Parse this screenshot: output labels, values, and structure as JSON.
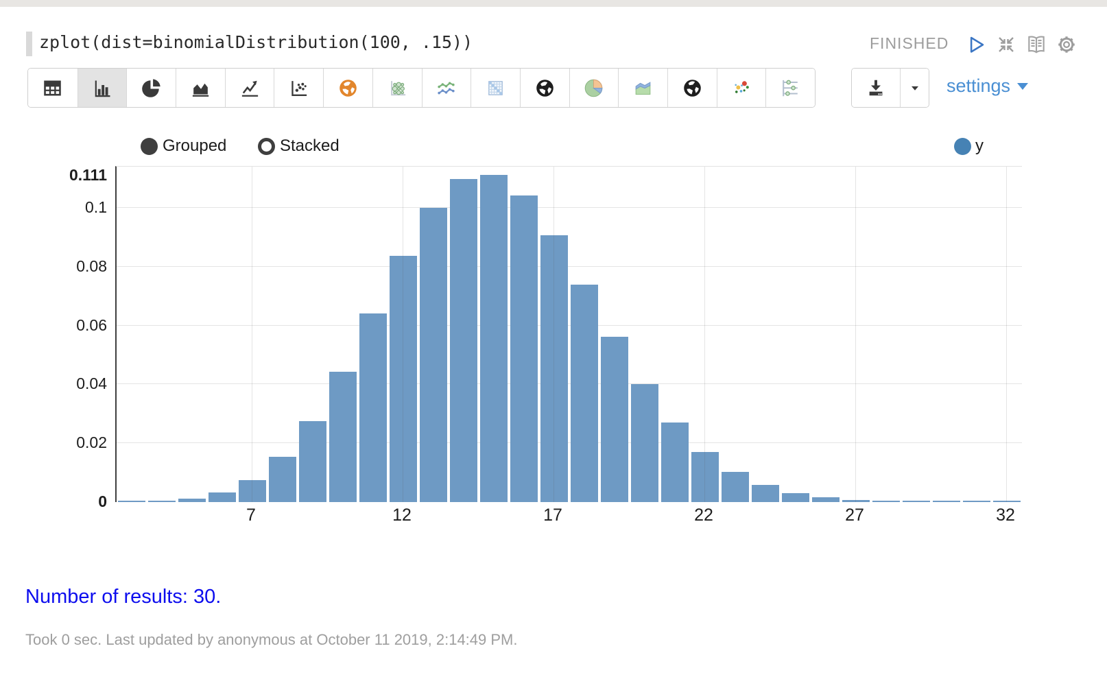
{
  "paragraph": {
    "code": "zplot(dist=binomialDistribution(100, .15))",
    "status": "FINISHED"
  },
  "toolbar": {
    "chart_types": [
      "table",
      "bar-chart",
      "pie-chart",
      "area-chart",
      "line-chart",
      "scatter-chart",
      "map-globe-orange",
      "bubble-chart",
      "multi-line-chart",
      "matrix-chart",
      "globe-map",
      "pie-chart-colored",
      "stacked-area-colored",
      "globe-map-2",
      "scatter-colored",
      "parallel-sliders"
    ],
    "selected_chart_type": "bar-chart",
    "settings_label": "settings"
  },
  "chart": {
    "mode_options": [
      "Grouped",
      "Stacked"
    ],
    "selected_mode": "Grouped",
    "legend_label": "y"
  },
  "chart_data": {
    "type": "bar",
    "title": "",
    "xlabel": "",
    "ylabel": "",
    "series_name": "y",
    "x": [
      3,
      4,
      5,
      6,
      7,
      8,
      9,
      10,
      11,
      12,
      13,
      14,
      15,
      16,
      17,
      18,
      19,
      20,
      21,
      22,
      23,
      24,
      25,
      26,
      27,
      28,
      29,
      30,
      31,
      32
    ],
    "values": [
      8e-05,
      0.00033,
      0.00113,
      0.00315,
      0.00745,
      0.0153,
      0.0276,
      0.0443,
      0.064,
      0.0838,
      0.1,
      0.1098,
      0.1111,
      0.1041,
      0.0907,
      0.0738,
      0.0562,
      0.0402,
      0.027,
      0.0171,
      0.0103,
      0.0058,
      0.0031,
      0.0016,
      0.0008,
      0.00035,
      0.00015,
      6e-05,
      2.6e-05,
      1e-05
    ],
    "yticks": [
      {
        "label": "0",
        "value": 0,
        "bold": true
      },
      {
        "label": "0.02",
        "value": 0.02
      },
      {
        "label": "0.04",
        "value": 0.04
      },
      {
        "label": "0.06",
        "value": 0.06
      },
      {
        "label": "0.08",
        "value": 0.08
      },
      {
        "label": "0.1",
        "value": 0.1
      },
      {
        "label": "0.111",
        "value": 0.111,
        "bold": true
      }
    ],
    "xticks": [
      {
        "label": "7",
        "value": 7
      },
      {
        "label": "12",
        "value": 12
      },
      {
        "label": "17",
        "value": 17
      },
      {
        "label": "22",
        "value": 22
      },
      {
        "label": "27",
        "value": 27
      },
      {
        "label": "32",
        "value": 32
      }
    ],
    "ylim": [
      0,
      0.114
    ],
    "grid": true,
    "legend_position": "top-right",
    "bar_color": "#6e9ac4"
  },
  "colors": {
    "accent_blue": "#4a8fd3",
    "bar_blue": "#6e9ac4",
    "legend_dot_blue": "#4682b4",
    "results_blue": "#0d0dee",
    "status_gray": "#9c9c9c"
  },
  "results": {
    "text": "Number of results: 30."
  },
  "footer": {
    "text": "Took 0 sec. Last updated by anonymous at October 11 2019, 2:14:49 PM."
  }
}
